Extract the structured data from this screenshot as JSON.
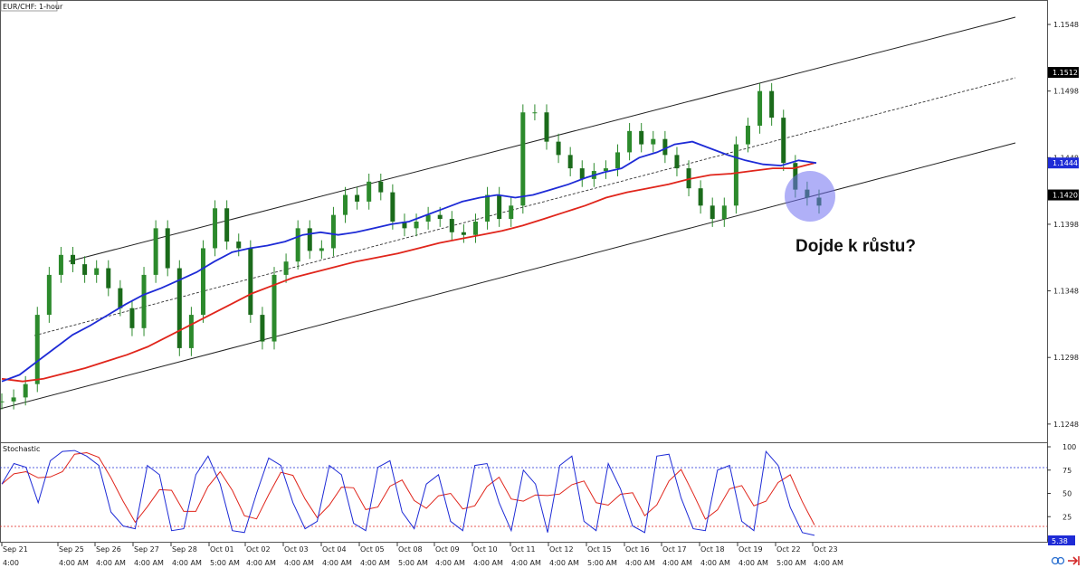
{
  "chart_data": {
    "type": "line",
    "title": "EUR/CHF: 1-hour",
    "annotation": "Dojde k růstu?",
    "price_axis": {
      "ylim": [
        1.1235,
        1.1565
      ],
      "ticks": [
        "1.1548",
        "1.1498",
        "1.1448",
        "1.1398",
        "1.1348",
        "1.1298",
        "1.1248"
      ],
      "markers": [
        {
          "label": "1.1512",
          "value": 1.1512,
          "bg": "#000000",
          "fg": "#ffffff"
        },
        {
          "label": "1.1444",
          "value": 1.1444,
          "bg": "#1e2bd6",
          "fg": "#ffffff"
        },
        {
          "label": "1.1420",
          "value": 1.142,
          "bg": "#000000",
          "fg": "#ffffff"
        }
      ]
    },
    "x_axis": {
      "dates": [
        "Sep 21",
        "Sep 25",
        "Sep 26",
        "Sep 27",
        "Sep 28",
        "Oct 01",
        "Oct 02",
        "Oct 03",
        "Oct 04",
        "Oct 05",
        "Oct 08",
        "Oct 09",
        "Oct 10",
        "Oct 11",
        "Oct 12",
        "Oct 15",
        "Oct 16",
        "Oct 17",
        "Oct 18",
        "Oct 19",
        "Oct 22",
        "Oct 23"
      ],
      "times": [
        "4:00",
        "4:00 AM",
        "4:00 AM",
        "4:00 AM",
        "4:00 AM",
        "5:00 AM",
        "4:00 AM",
        "4:00 AM",
        "4:00 AM",
        "4:00 AM",
        "5:00 AM",
        "4:00 AM",
        "4:00 AM",
        "4:00 AM",
        "4:00 AM",
        "5:00 AM",
        "4:00 AM",
        "4:00 AM",
        "4:00 AM",
        "4:00 AM",
        "5:00 AM",
        "4:00 AM"
      ]
    },
    "price_series": {
      "name": "EUR/CHF",
      "color": "#2c8a2c",
      "values": [
        1.1265,
        1.1268,
        1.1278,
        1.133,
        1.136,
        1.1375,
        1.1368,
        1.136,
        1.1365,
        1.135,
        1.1335,
        1.132,
        1.136,
        1.1395,
        1.1365,
        1.1305,
        1.133,
        1.138,
        1.141,
        1.1385,
        1.138,
        1.133,
        1.131,
        1.136,
        1.137,
        1.1395,
        1.1378,
        1.138,
        1.1405,
        1.142,
        1.1415,
        1.143,
        1.1422,
        1.14,
        1.1395,
        1.14,
        1.1405,
        1.1402,
        1.1392,
        1.139,
        1.14,
        1.142,
        1.1402,
        1.1412,
        1.1482,
        1.1482,
        1.146,
        1.145,
        1.144,
        1.1432,
        1.1438,
        1.144,
        1.1452,
        1.1468,
        1.1458,
        1.1462,
        1.145,
        1.144,
        1.1425,
        1.1412,
        1.1402,
        1.1412,
        1.1458,
        1.1472,
        1.1498,
        1.1478,
        1.1444,
        1.1424,
        1.1418,
        1.1412
      ]
    },
    "ma_blue": {
      "name": "",
      "color": "#1e2bd6",
      "values": [
        1.128,
        1.1285,
        1.1295,
        1.1305,
        1.1315,
        1.1322,
        1.133,
        1.1338,
        1.1345,
        1.135,
        1.1356,
        1.1362,
        1.137,
        1.1377,
        1.138,
        1.1382,
        1.1385,
        1.139,
        1.1392,
        1.139,
        1.1392,
        1.1395,
        1.1398,
        1.14,
        1.1405,
        1.141,
        1.1415,
        1.1418,
        1.142,
        1.1418,
        1.142,
        1.1424,
        1.1428,
        1.1433,
        1.1437,
        1.144,
        1.1448,
        1.1452,
        1.1458,
        1.146,
        1.1455,
        1.145,
        1.1446,
        1.1443,
        1.1442,
        1.1446,
        1.1444
      ]
    },
    "ma_red": {
      "name": "",
      "color": "#e0251b",
      "values": [
        1.1282,
        1.128,
        1.1282,
        1.1286,
        1.129,
        1.1295,
        1.13,
        1.1306,
        1.1314,
        1.1322,
        1.133,
        1.1338,
        1.1346,
        1.1352,
        1.1358,
        1.1362,
        1.1366,
        1.137,
        1.1373,
        1.1376,
        1.138,
        1.1384,
        1.1387,
        1.139,
        1.1393,
        1.1397,
        1.1402,
        1.1407,
        1.1412,
        1.1418,
        1.1422,
        1.1425,
        1.1428,
        1.1432,
        1.1435,
        1.1436,
        1.1438,
        1.144,
        1.144,
        1.1444
      ]
    },
    "stochastic": {
      "title": "Stochastic",
      "ylim": [
        0,
        100
      ],
      "ticks": [
        "100",
        "75",
        "50",
        "25",
        "0"
      ],
      "levels": [
        80,
        20
      ],
      "current": "5.38",
      "k_color": "#1e2bd6",
      "d_color": "#e0251b",
      "values": [
        60,
        82,
        78,
        40,
        85,
        95,
        96,
        90,
        80,
        30,
        15,
        12,
        80,
        70,
        10,
        12,
        70,
        90,
        60,
        10,
        8,
        50,
        88,
        80,
        40,
        12,
        20,
        80,
        70,
        18,
        10,
        78,
        85,
        30,
        12,
        60,
        70,
        20,
        10,
        80,
        82,
        40,
        10,
        75,
        60,
        8,
        80,
        90,
        20,
        10,
        82,
        55,
        15,
        8,
        90,
        92,
        45,
        12,
        10,
        75,
        80,
        20,
        10,
        95,
        80,
        35,
        8,
        5
      ]
    }
  }
}
